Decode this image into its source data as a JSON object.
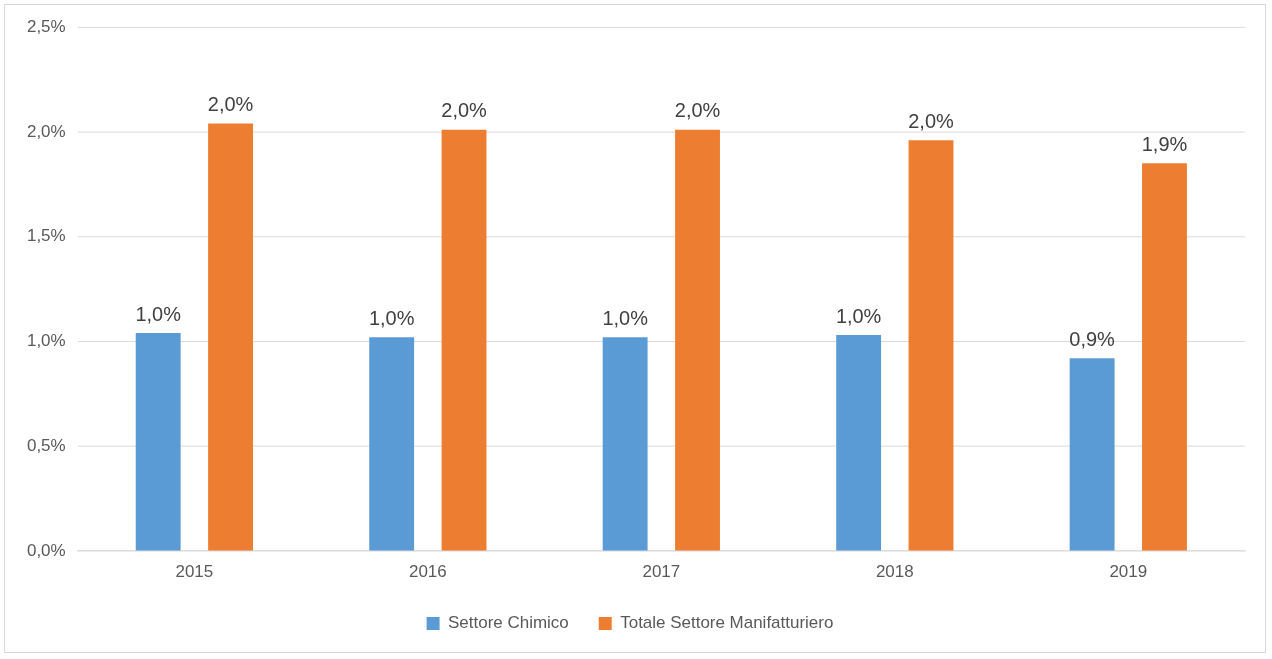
{
  "chart_data": {
    "type": "bar",
    "categories": [
      "2015",
      "2016",
      "2017",
      "2018",
      "2019"
    ],
    "series": [
      {
        "name": "Settore Chimico",
        "color": "#5b9bd5",
        "values": [
          1.04,
          1.02,
          1.02,
          1.03,
          0.92
        ],
        "value_labels": [
          "1,0%",
          "1,0%",
          "1,0%",
          "1,0%",
          "0,9%"
        ]
      },
      {
        "name": "Totale Settore Manifatturiero",
        "color": "#ed7d31",
        "values": [
          2.04,
          2.01,
          2.01,
          1.96,
          1.85
        ],
        "value_labels": [
          "2,0%",
          "2,0%",
          "2,0%",
          "2,0%",
          "1,9%"
        ]
      }
    ],
    "ylim": [
      0,
      2.5
    ],
    "yticks": [
      {
        "value": 0,
        "label": "0,0%"
      },
      {
        "value": 0.5,
        "label": "0,5%"
      },
      {
        "value": 1,
        "label": "1,0%"
      },
      {
        "value": 1.5,
        "label": "1,5%"
      },
      {
        "value": 2,
        "label": "2,0%"
      },
      {
        "value": 2.5,
        "label": "2,5%"
      }
    ],
    "grid": "y",
    "legend": "bottom"
  }
}
